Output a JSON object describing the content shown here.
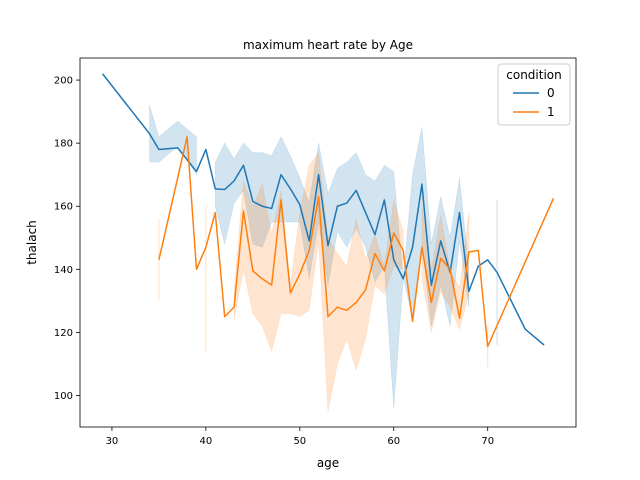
{
  "chart_data": {
    "type": "line",
    "title": "maximum heart rate by Age",
    "xlabel": "age",
    "ylabel": "thalach",
    "xlim": [
      26.6,
      79.4
    ],
    "ylim": [
      90.0,
      207.0
    ],
    "xticks": [
      30,
      40,
      50,
      60,
      70
    ],
    "yticks": [
      100,
      120,
      140,
      160,
      180,
      200
    ],
    "grid": false,
    "legend": {
      "title": "condition",
      "placement": "top-right"
    },
    "colors": {
      "0": "#1f77b4",
      "1": "#ff7f0e"
    },
    "series": [
      {
        "name": "0",
        "color": "#1f77b4",
        "x": [
          29,
          34,
          35,
          37,
          39,
          40,
          41,
          42,
          43,
          44,
          45,
          46,
          47,
          48,
          49,
          50,
          51,
          52,
          53,
          54,
          55,
          56,
          57,
          58,
          59,
          60,
          61,
          62,
          63,
          64,
          65,
          66,
          67,
          68,
          69,
          70,
          71,
          74,
          76
        ],
        "y": [
          202,
          183,
          178,
          178.5,
          171,
          178,
          165.5,
          165.3,
          168,
          173,
          161.5,
          160,
          159.3,
          170,
          165.5,
          160.5,
          149,
          170,
          147.5,
          160,
          161,
          165,
          158,
          151,
          162,
          143,
          137,
          147,
          167,
          135,
          149,
          139,
          158,
          133,
          141,
          143,
          139,
          121,
          116
        ],
        "lo": [
          null,
          174,
          174,
          179,
          170,
          null,
          160,
          148,
          161,
          165,
          148,
          147,
          155,
          155,
          155,
          155,
          137,
          155,
          135,
          152,
          147,
          153,
          147,
          136,
          141,
          96,
          137,
          125,
          148,
          122,
          135,
          122,
          149,
          128,
          null,
          null,
          116,
          null,
          null
        ],
        "hi": [
          null,
          192,
          182,
          187,
          182,
          null,
          174,
          180,
          175,
          180,
          177,
          177,
          176,
          182,
          176,
          169,
          161,
          180,
          164,
          172,
          174,
          177,
          170,
          168,
          173,
          171,
          137,
          170,
          185,
          148,
          163,
          150,
          169,
          140,
          null,
          null,
          162,
          null,
          null
        ]
      },
      {
        "name": "1",
        "color": "#ff7f0e",
        "x": [
          35,
          38,
          39,
          40,
          41,
          42,
          43,
          44,
          45,
          46,
          47,
          48,
          49,
          50,
          51,
          52,
          53,
          54,
          55,
          56,
          57,
          58,
          59,
          60,
          61,
          62,
          63,
          64,
          65,
          66,
          67,
          68,
          69,
          70,
          77
        ],
        "y": [
          143,
          182,
          140,
          147,
          158,
          125,
          128,
          158.5,
          139.5,
          137,
          135,
          162,
          132.5,
          138.5,
          146,
          163,
          125,
          128,
          127,
          129.5,
          133.5,
          145,
          139.5,
          151.5,
          146,
          123.5,
          147,
          129.5,
          143.5,
          140,
          124.5,
          145.5,
          146,
          115.5,
          162.5
        ],
        "lo": [
          130,
          null,
          null,
          114,
          null,
          null,
          124,
          140,
          126,
          122,
          114,
          126,
          126,
          125,
          127,
          149,
          95,
          110,
          118,
          108,
          118,
          135,
          132,
          141,
          140,
          null,
          137,
          120,
          133,
          128,
          121,
          132,
          null,
          109,
          null
        ],
        "hi": [
          156,
          null,
          null,
          160,
          null,
          null,
          133,
          168,
          160,
          167,
          151,
          165,
          135,
          158,
          173,
          177,
          150,
          145,
          141,
          156,
          143,
          151,
          141,
          162,
          152,
          null,
          160,
          140,
          157,
          140,
          134,
          158,
          null,
          122,
          null
        ]
      }
    ]
  }
}
